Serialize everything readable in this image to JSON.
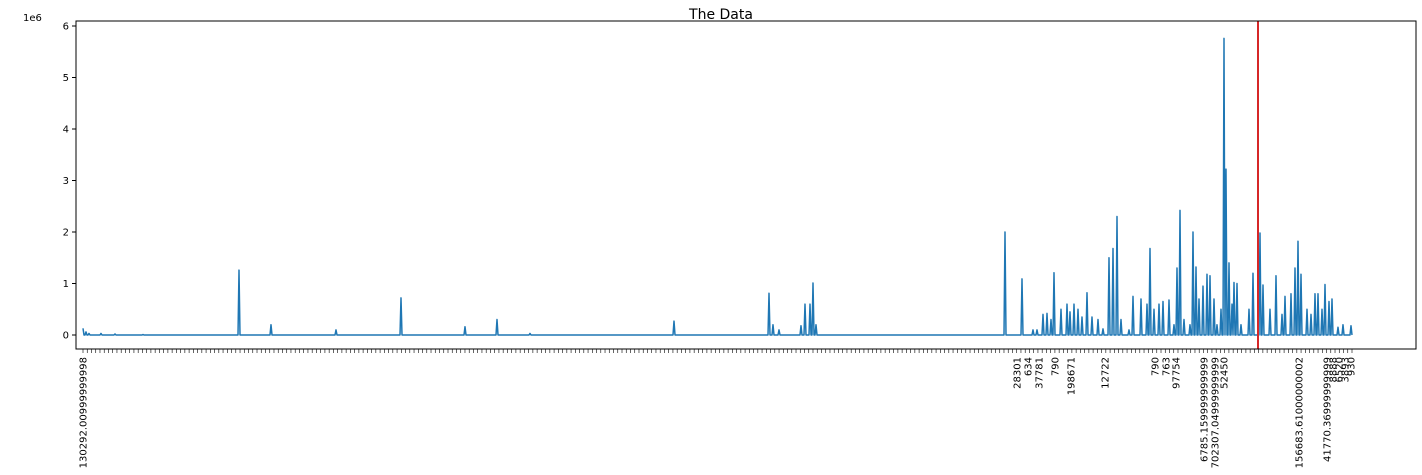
{
  "chart_data": {
    "type": "line",
    "title": "The Data",
    "xlabel": "",
    "ylabel": "",
    "y_offset_label": "1e6",
    "ylim": [
      -0.3,
      6.0
    ],
    "y_ticks": [
      0,
      1,
      2,
      3,
      4,
      5,
      6
    ],
    "y_tick_labels": [
      "0",
      "1",
      "2",
      "3",
      "4",
      "5",
      "6"
    ],
    "grid": false,
    "colors": {
      "series": "#1f77b4",
      "marker": "#d62728"
    },
    "n_points": 1270,
    "vertical_line_x": 1175,
    "spikes": [
      {
        "x": 0,
        "y": 0.13
      },
      {
        "x": 3,
        "y": 0.06
      },
      {
        "x": 6,
        "y": 0.03
      },
      {
        "x": 18,
        "y": 0.03
      },
      {
        "x": 32,
        "y": 0.02
      },
      {
        "x": 60,
        "y": 0.01
      },
      {
        "x": 156,
        "y": 1.26
      },
      {
        "x": 188,
        "y": 0.2
      },
      {
        "x": 253,
        "y": 0.1
      },
      {
        "x": 318,
        "y": 0.72
      },
      {
        "x": 382,
        "y": 0.16
      },
      {
        "x": 414,
        "y": 0.3
      },
      {
        "x": 447,
        "y": 0.03
      },
      {
        "x": 591,
        "y": 0.27
      },
      {
        "x": 686,
        "y": 0.81
      },
      {
        "x": 690,
        "y": 0.2
      },
      {
        "x": 696,
        "y": 0.1
      },
      {
        "x": 718,
        "y": 0.18
      },
      {
        "x": 722,
        "y": 0.6
      },
      {
        "x": 727,
        "y": 0.6
      },
      {
        "x": 730,
        "y": 1.01
      },
      {
        "x": 733,
        "y": 0.2
      },
      {
        "x": 922,
        "y": 2.0
      },
      {
        "x": 939,
        "y": 1.09
      },
      {
        "x": 950,
        "y": 0.1
      },
      {
        "x": 954,
        "y": 0.1
      },
      {
        "x": 960,
        "y": 0.4
      },
      {
        "x": 964,
        "y": 0.42
      },
      {
        "x": 968,
        "y": 0.3
      },
      {
        "x": 971,
        "y": 1.21
      },
      {
        "x": 978,
        "y": 0.5
      },
      {
        "x": 984,
        "y": 0.6
      },
      {
        "x": 987,
        "y": 0.45
      },
      {
        "x": 991,
        "y": 0.6
      },
      {
        "x": 995,
        "y": 0.5
      },
      {
        "x": 999,
        "y": 0.35
      },
      {
        "x": 1004,
        "y": 0.82
      },
      {
        "x": 1009,
        "y": 0.35
      },
      {
        "x": 1015,
        "y": 0.3
      },
      {
        "x": 1020,
        "y": 0.12
      },
      {
        "x": 1026,
        "y": 1.5
      },
      {
        "x": 1030,
        "y": 1.68
      },
      {
        "x": 1034,
        "y": 2.3
      },
      {
        "x": 1038,
        "y": 0.3
      },
      {
        "x": 1046,
        "y": 0.1
      },
      {
        "x": 1050,
        "y": 0.75
      },
      {
        "x": 1058,
        "y": 0.7
      },
      {
        "x": 1064,
        "y": 0.6
      },
      {
        "x": 1067,
        "y": 1.68
      },
      {
        "x": 1071,
        "y": 0.5
      },
      {
        "x": 1076,
        "y": 0.6
      },
      {
        "x": 1080,
        "y": 0.65
      },
      {
        "x": 1086,
        "y": 0.68
      },
      {
        "x": 1091,
        "y": 0.2
      },
      {
        "x": 1094,
        "y": 1.3
      },
      {
        "x": 1097,
        "y": 2.42
      },
      {
        "x": 1101,
        "y": 0.3
      },
      {
        "x": 1107,
        "y": 0.2
      },
      {
        "x": 1110,
        "y": 2.0
      },
      {
        "x": 1113,
        "y": 1.32
      },
      {
        "x": 1116,
        "y": 0.7
      },
      {
        "x": 1120,
        "y": 0.95
      },
      {
        "x": 1124,
        "y": 1.18
      },
      {
        "x": 1127,
        "y": 1.15
      },
      {
        "x": 1131,
        "y": 0.7
      },
      {
        "x": 1134,
        "y": 0.2
      },
      {
        "x": 1138,
        "y": 0.5
      },
      {
        "x": 1141,
        "y": 5.76
      },
      {
        "x": 1143,
        "y": 3.22
      },
      {
        "x": 1146,
        "y": 1.4
      },
      {
        "x": 1149,
        "y": 0.6
      },
      {
        "x": 1151,
        "y": 1.02
      },
      {
        "x": 1154,
        "y": 1.0
      },
      {
        "x": 1158,
        "y": 0.2
      },
      {
        "x": 1166,
        "y": 0.5
      },
      {
        "x": 1170,
        "y": 1.2
      },
      {
        "x": 1177,
        "y": 1.98
      },
      {
        "x": 1180,
        "y": 0.97
      },
      {
        "x": 1187,
        "y": 0.5
      },
      {
        "x": 1193,
        "y": 1.15
      },
      {
        "x": 1199,
        "y": 0.4
      },
      {
        "x": 1202,
        "y": 0.75
      },
      {
        "x": 1208,
        "y": 0.8
      },
      {
        "x": 1212,
        "y": 1.3
      },
      {
        "x": 1215,
        "y": 1.82
      },
      {
        "x": 1218,
        "y": 1.18
      },
      {
        "x": 1224,
        "y": 0.5
      },
      {
        "x": 1228,
        "y": 0.4
      },
      {
        "x": 1232,
        "y": 0.8
      },
      {
        "x": 1235,
        "y": 0.8
      },
      {
        "x": 1239,
        "y": 0.5
      },
      {
        "x": 1242,
        "y": 0.98
      },
      {
        "x": 1246,
        "y": 0.65
      },
      {
        "x": 1249,
        "y": 0.7
      },
      {
        "x": 1255,
        "y": 0.15
      },
      {
        "x": 1260,
        "y": 0.2
      },
      {
        "x": 1268,
        "y": 0.18
      }
    ],
    "visible_x_tick_labels": [
      "130292.00999999998",
      "28301",
      "634",
      "37781",
      "790",
      "198671",
      "12722",
      "790",
      "763",
      "97754",
      "6785.159999999999",
      "702307.04999999999",
      "52450",
      "156683.61000000002",
      "41770.36999999999",
      "8888",
      "6520",
      "3893",
      "930"
    ]
  }
}
